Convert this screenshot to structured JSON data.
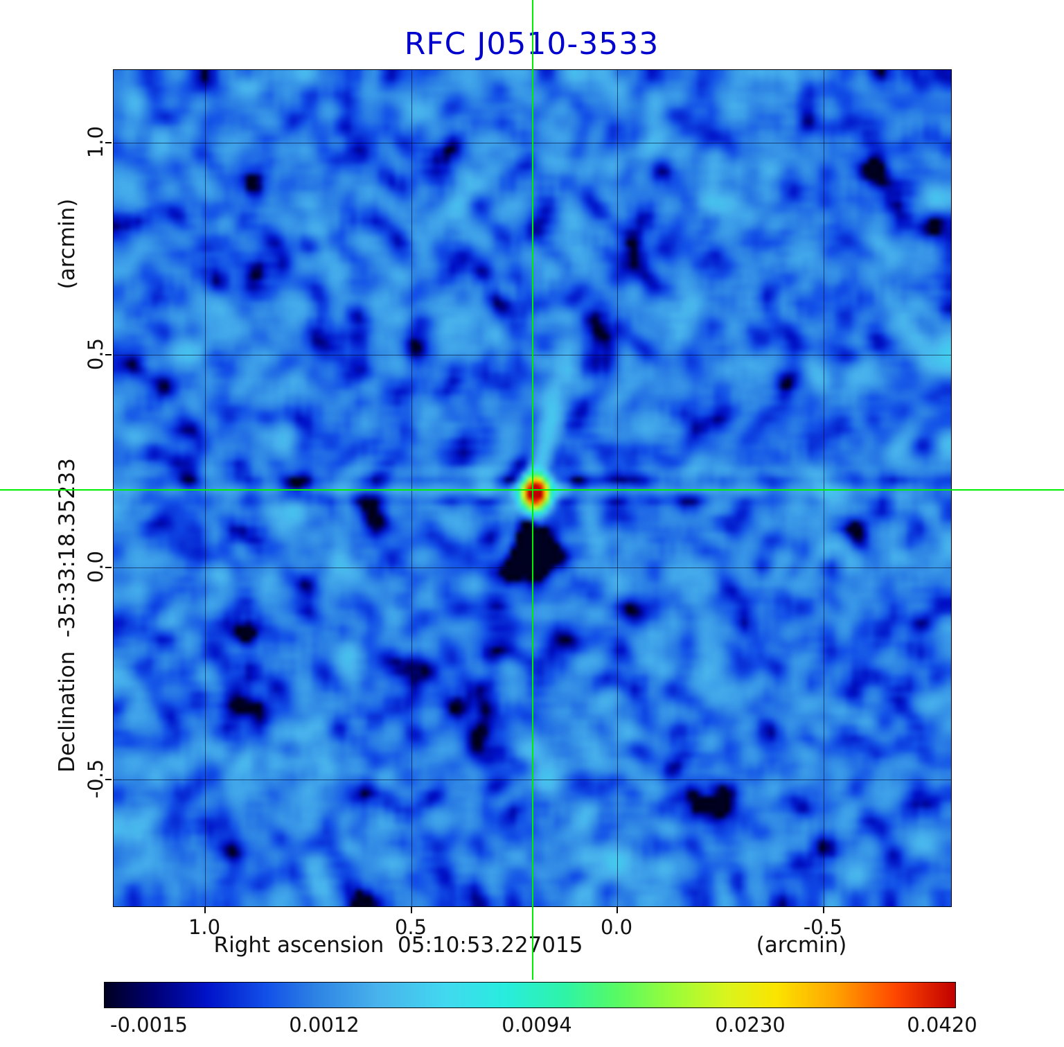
{
  "title": "RFC J0510-3533",
  "colors": {
    "title": "#0000cd",
    "crosshair": "#00ee00",
    "grid": "rgba(0,0,25,0.55)",
    "text": "#111111"
  },
  "axes": {
    "x": {
      "label": "Right ascension  05:10:53.227015",
      "unit": "(arcmin)",
      "ticks": [
        {
          "value": 1.0,
          "label": "1.0"
        },
        {
          "value": 0.5,
          "label": "0.5"
        },
        {
          "value": 0.0,
          "label": "0.0"
        },
        {
          "value": -0.5,
          "label": "-0.5"
        }
      ]
    },
    "y": {
      "label": "Declination  -35:33:18.35233",
      "unit": "(arcmin)",
      "ticks": [
        {
          "value": 1.0,
          "label": "1.0"
        },
        {
          "value": 0.5,
          "label": "0.5"
        },
        {
          "value": 0.0,
          "label": "0.0"
        },
        {
          "value": -0.5,
          "label": "-0.5"
        }
      ]
    }
  },
  "crosshair": {
    "x_arcmin": 0.205,
    "y_arcmin": 0.183
  },
  "colorbar": {
    "ticks": [
      {
        "value": -0.0015,
        "label": "-0.0015",
        "pos": 0.053
      },
      {
        "value": 0.0012,
        "label": "0.0012",
        "pos": 0.259
      },
      {
        "value": 0.0094,
        "label": "0.0094",
        "pos": 0.509
      },
      {
        "value": 0.023,
        "label": "0.0230",
        "pos": 0.76
      },
      {
        "value": 0.042,
        "label": "0.0420",
        "pos": 0.985
      }
    ],
    "stops": [
      [
        0.0,
        "#000020"
      ],
      [
        0.06,
        "#000078"
      ],
      [
        0.12,
        "#0012c8"
      ],
      [
        0.19,
        "#1250e8"
      ],
      [
        0.25,
        "#2e84e4"
      ],
      [
        0.32,
        "#48b2ec"
      ],
      [
        0.4,
        "#42d8f0"
      ],
      [
        0.47,
        "#28ecde"
      ],
      [
        0.54,
        "#2ef4a8"
      ],
      [
        0.6,
        "#55fa66"
      ],
      [
        0.67,
        "#9cfc38"
      ],
      [
        0.73,
        "#d8f51e"
      ],
      [
        0.79,
        "#fbe400"
      ],
      [
        0.86,
        "#ffa200"
      ],
      [
        0.93,
        "#ff4600"
      ],
      [
        1.0,
        "#c00000"
      ]
    ]
  },
  "chart_data": {
    "type": "heatmap",
    "title": "RFC J0510-3533",
    "xlabel": "Right ascension  05:10:53.227015 (arcmin)",
    "ylabel": "Declination  -35:33:18.35233 (arcmin)",
    "x_range": [
      1.222,
      -0.81
    ],
    "y_range": [
      1.171,
      -0.798
    ],
    "x_ticks": [
      1.0,
      0.5,
      0.0,
      -0.5
    ],
    "y_ticks": [
      1.0,
      0.5,
      0.0,
      -0.5
    ],
    "colorbar_ticks": [
      -0.0015,
      0.0012,
      0.0094,
      0.023,
      0.042
    ],
    "color_scale": {
      "type": "sqrt",
      "min": -0.0016,
      "max": 0.0445
    },
    "source": {
      "x_arcmin": 0.205,
      "y_arcmin": 0.183,
      "peak_intensity": 0.042
    },
    "background": {
      "mean": 0.0009,
      "noise_sigma": 0.001
    },
    "grid": true,
    "legend": false,
    "resolution": 152,
    "seed": 7
  }
}
